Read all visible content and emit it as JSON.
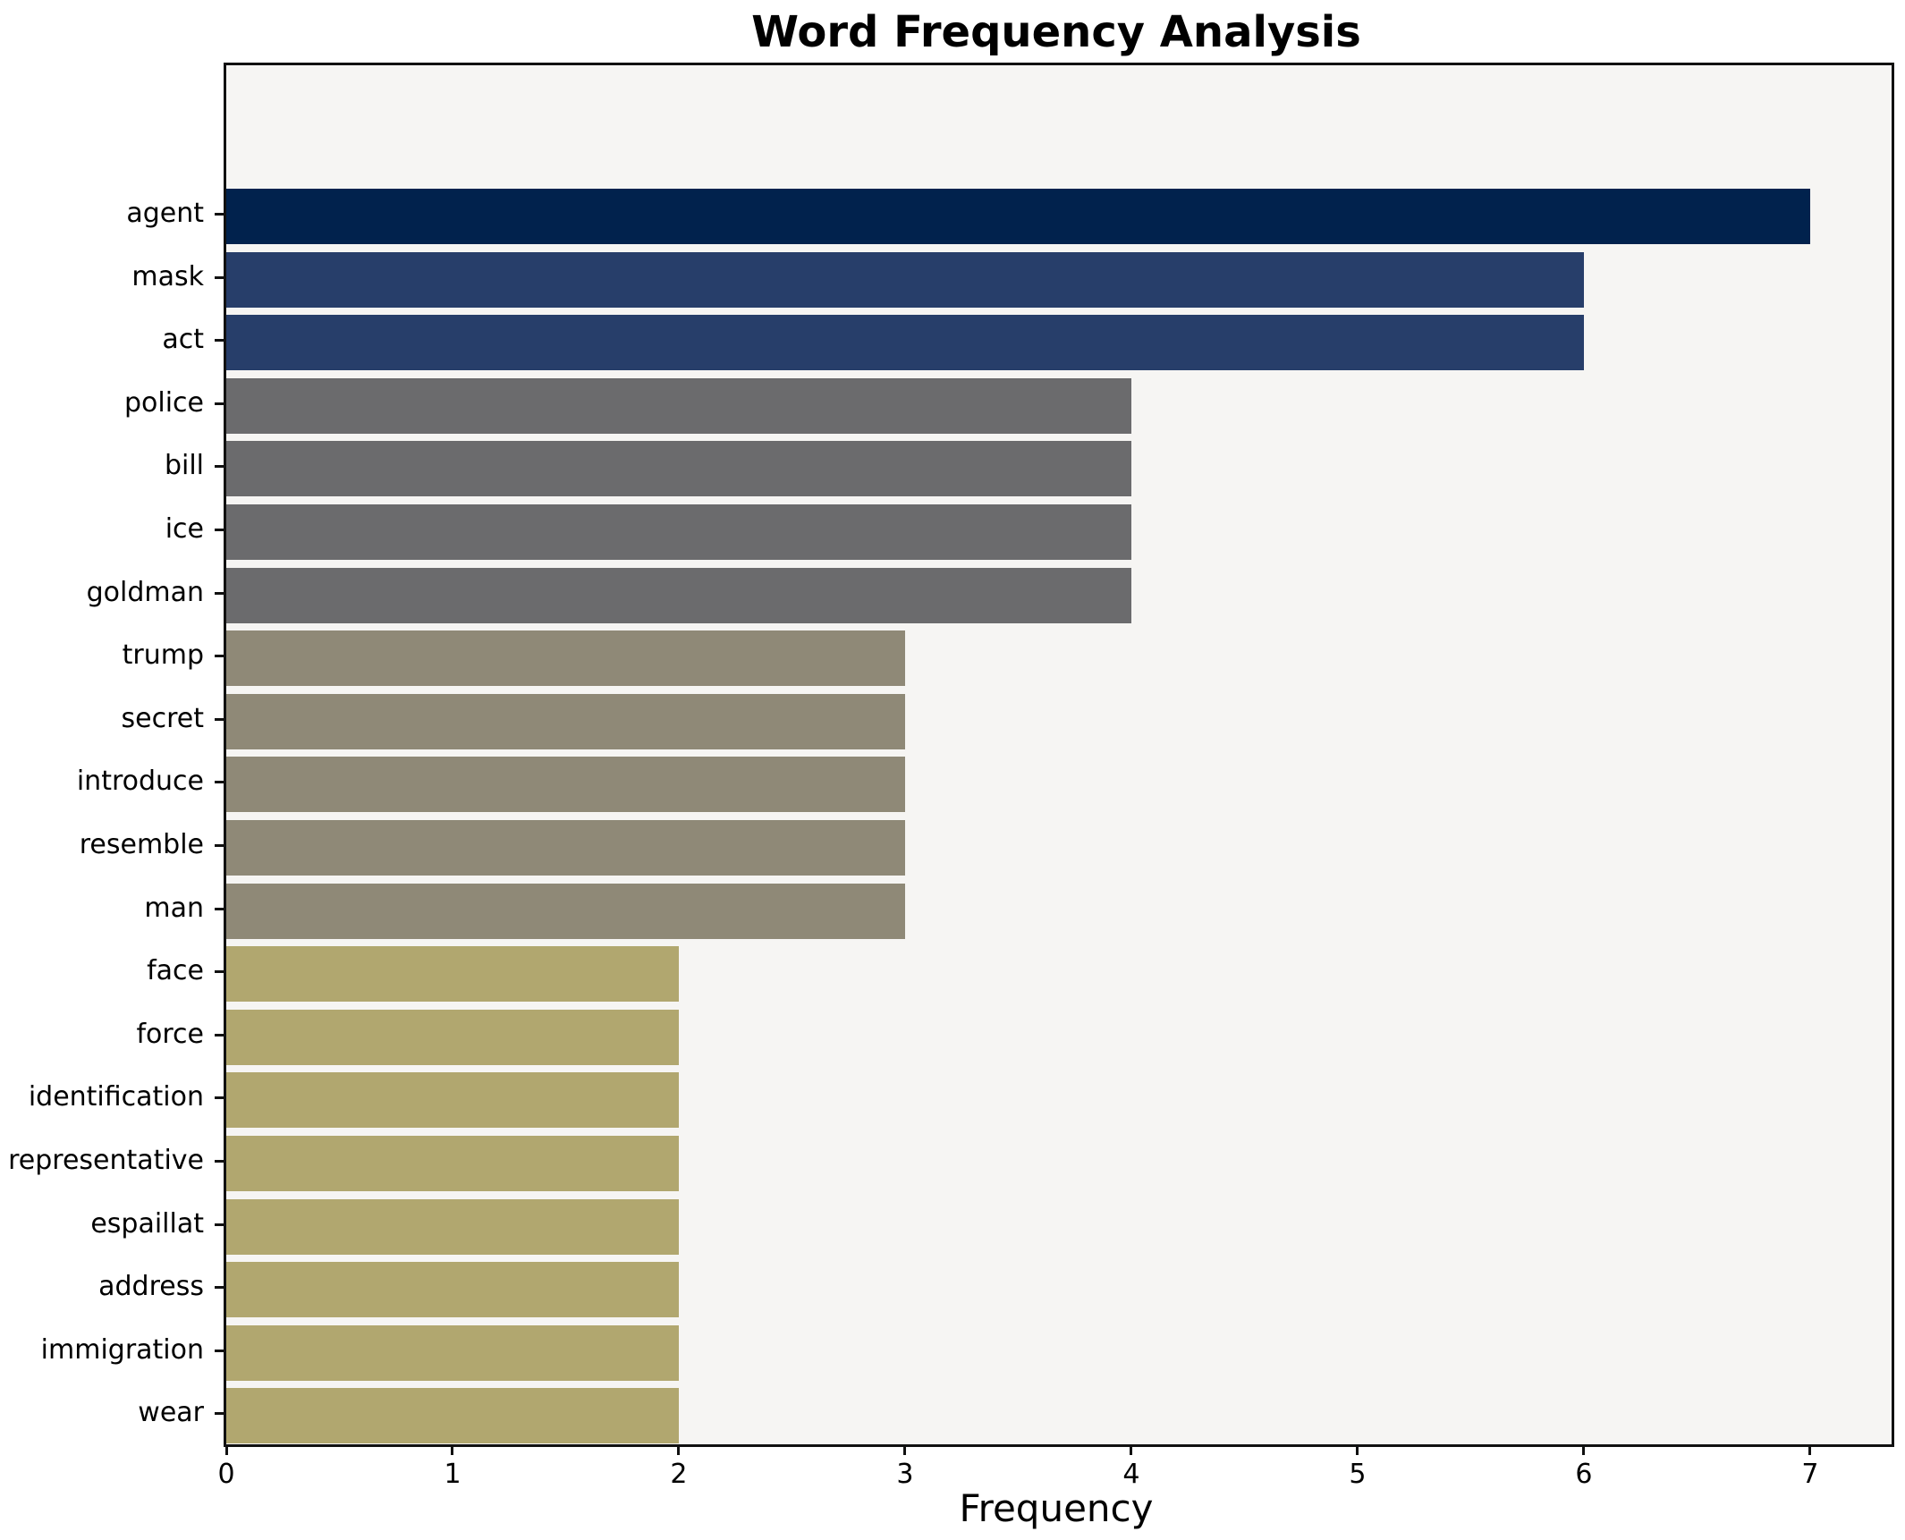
{
  "title": "Word Frequency Analysis",
  "chart_data": {
    "type": "bar",
    "orientation": "horizontal",
    "title": "Word Frequency Analysis",
    "xlabel": "Frequency",
    "ylabel": "",
    "categories": [
      "agent",
      "mask",
      "act",
      "police",
      "bill",
      "ice",
      "goldman",
      "trump",
      "secret",
      "introduce",
      "resemble",
      "man",
      "face",
      "force",
      "identification",
      "representative",
      "espaillat",
      "address",
      "immigration",
      "wear"
    ],
    "values": [
      7,
      6,
      6,
      4,
      4,
      4,
      4,
      3,
      3,
      3,
      3,
      3,
      2,
      2,
      2,
      2,
      2,
      2,
      2,
      2
    ],
    "bar_colors": [
      "#01224D",
      "#273E6A",
      "#273E6A",
      "#6B6B6D",
      "#6B6B6D",
      "#6B6B6D",
      "#6B6B6D",
      "#8F8977",
      "#8F8977",
      "#8F8977",
      "#8F8977",
      "#8F8977",
      "#B1A76F",
      "#B1A76F",
      "#B1A76F",
      "#B1A76F",
      "#B1A76F",
      "#B1A76F",
      "#B1A76F",
      "#B1A76F"
    ],
    "xlim": [
      0,
      7.36
    ],
    "xticks": [
      0,
      1,
      2,
      3,
      4,
      5,
      6,
      7
    ],
    "grid": false,
    "legend_position": "none",
    "plot_background": "#F6F5F3",
    "figure_background": "#FFFFFF",
    "spine_color": "#111111",
    "text_color": "#000000"
  }
}
